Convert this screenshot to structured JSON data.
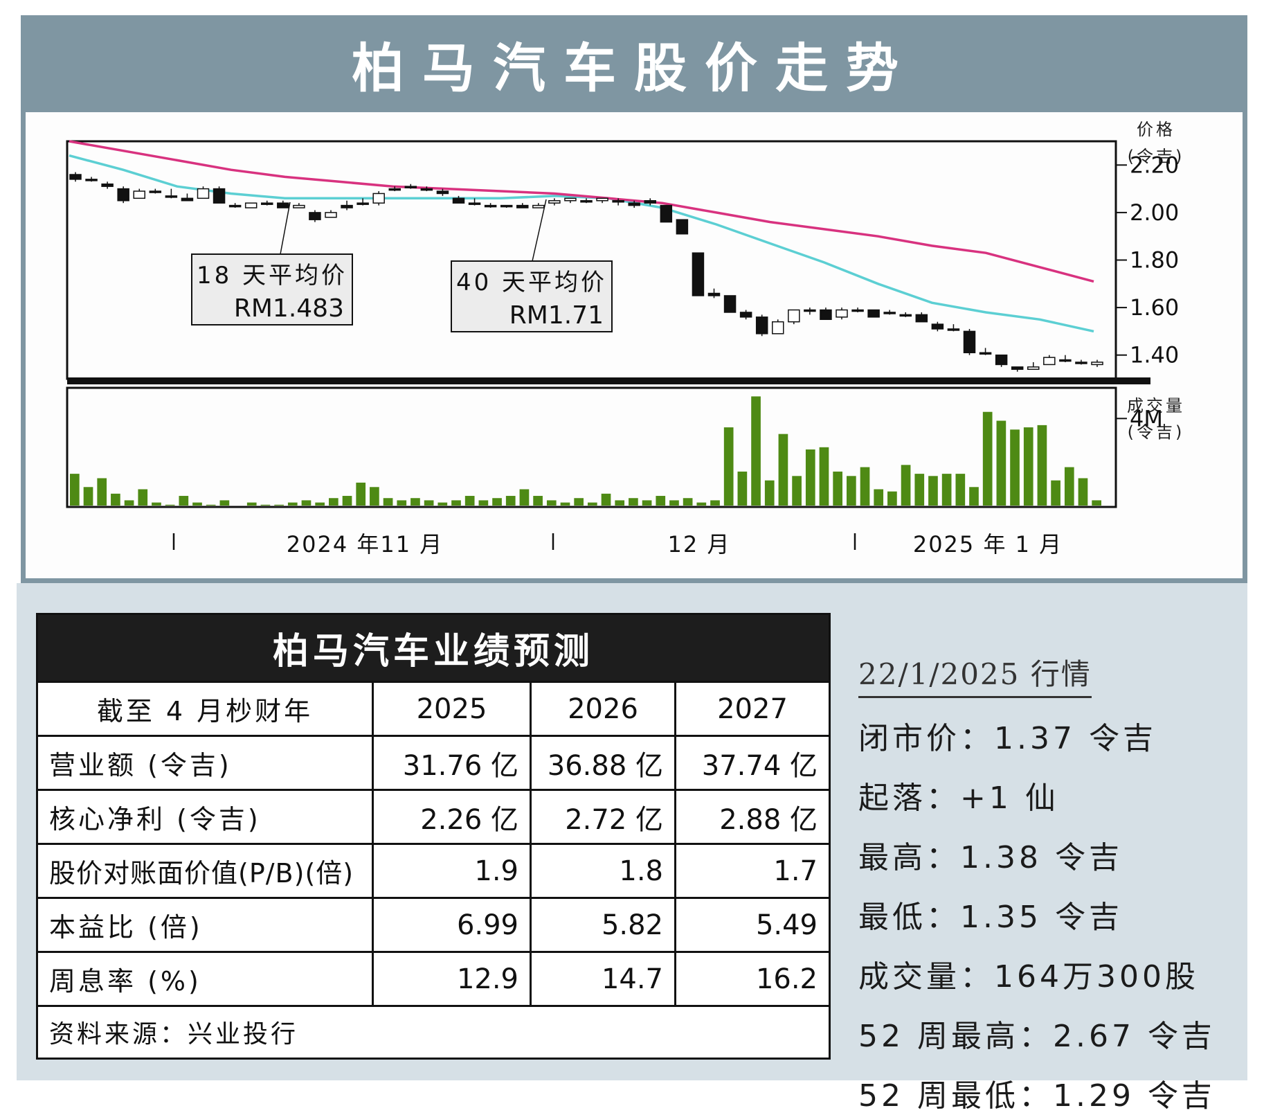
{
  "title": "柏马汽车股价走势",
  "chart_data": [
    {
      "type": "candlestick",
      "title": "柏马汽车股价走势",
      "ylabel": "价格 (令吉)",
      "y_ticks": [
        "2.20",
        "2.00",
        "1.80",
        "1.60",
        "1.40"
      ],
      "ylim": [
        1.3,
        2.3
      ],
      "x_labels": [
        "2024 年11 月",
        "12 月",
        "2025 年 1 月"
      ],
      "ma_labels": [
        {
          "name": "18 天平均价",
          "value": "RM1.483"
        },
        {
          "name": "40 天平均价",
          "value": "RM1.71"
        }
      ],
      "series": [
        {
          "name": "18 天平均价",
          "color": "#5ccfd3",
          "values": [
            2.24,
            2.18,
            2.11,
            2.08,
            2.06,
            2.06,
            2.06,
            2.06,
            2.06,
            2.07,
            2.06,
            2.02,
            1.95,
            1.87,
            1.79,
            1.7,
            1.62,
            1.58,
            1.55,
            1.5
          ]
        },
        {
          "name": "40 天平均价",
          "color": "#d8327f",
          "values": [
            2.3,
            2.26,
            2.22,
            2.18,
            2.15,
            2.13,
            2.11,
            2.1,
            2.09,
            2.08,
            2.06,
            2.04,
            2.0,
            1.96,
            1.93,
            1.9,
            1.86,
            1.83,
            1.77,
            1.71
          ]
        }
      ],
      "ohlc": [
        [
          2.16,
          2.17,
          2.13,
          2.14
        ],
        [
          2.14,
          2.15,
          2.13,
          2.14
        ],
        [
          2.12,
          2.13,
          2.1,
          2.11
        ],
        [
          2.1,
          2.11,
          2.04,
          2.05
        ],
        [
          2.06,
          2.1,
          2.06,
          2.09
        ],
        [
          2.09,
          2.1,
          2.08,
          2.09
        ],
        [
          2.07,
          2.1,
          2.06,
          2.07
        ],
        [
          2.06,
          2.08,
          2.05,
          2.05
        ],
        [
          2.06,
          2.11,
          2.06,
          2.1
        ],
        [
          2.1,
          2.11,
          2.04,
          2.04
        ],
        [
          2.03,
          2.04,
          2.02,
          2.03
        ],
        [
          2.02,
          2.04,
          2.02,
          2.04
        ],
        [
          2.04,
          2.05,
          2.03,
          2.04
        ],
        [
          2.04,
          2.05,
          2.02,
          2.02
        ],
        [
          2.02,
          2.04,
          2.02,
          2.03
        ],
        [
          2.0,
          2.01,
          1.96,
          1.97
        ],
        [
          1.98,
          2.01,
          1.98,
          2.0
        ],
        [
          2.03,
          2.05,
          2.01,
          2.02
        ],
        [
          2.04,
          2.06,
          2.03,
          2.04
        ],
        [
          2.04,
          2.09,
          2.03,
          2.08
        ],
        [
          2.1,
          2.11,
          2.09,
          2.1
        ],
        [
          2.11,
          2.12,
          2.1,
          2.11
        ],
        [
          2.1,
          2.11,
          2.09,
          2.1
        ],
        [
          2.09,
          2.1,
          2.07,
          2.08
        ],
        [
          2.06,
          2.07,
          2.04,
          2.04
        ],
        [
          2.04,
          2.06,
          2.03,
          2.04
        ],
        [
          2.03,
          2.04,
          2.02,
          2.03
        ],
        [
          2.03,
          2.03,
          2.02,
          2.03
        ],
        [
          2.03,
          2.04,
          2.02,
          2.02
        ],
        [
          2.02,
          2.04,
          2.02,
          2.03
        ],
        [
          2.04,
          2.06,
          2.03,
          2.05
        ],
        [
          2.05,
          2.06,
          2.04,
          2.06
        ],
        [
          2.05,
          2.06,
          2.04,
          2.05
        ],
        [
          2.05,
          2.06,
          2.04,
          2.06
        ],
        [
          2.05,
          2.06,
          2.03,
          2.05
        ],
        [
          2.04,
          2.05,
          2.02,
          2.03
        ],
        [
          2.05,
          2.06,
          2.03,
          2.04
        ],
        [
          2.03,
          2.03,
          1.96,
          1.96
        ],
        [
          1.97,
          1.97,
          1.91,
          1.91
        ],
        [
          1.83,
          1.83,
          1.65,
          1.65
        ],
        [
          1.66,
          1.68,
          1.64,
          1.65
        ],
        [
          1.65,
          1.65,
          1.58,
          1.58
        ],
        [
          1.58,
          1.59,
          1.55,
          1.56
        ],
        [
          1.56,
          1.57,
          1.48,
          1.49
        ],
        [
          1.49,
          1.55,
          1.49,
          1.54
        ],
        [
          1.54,
          1.59,
          1.53,
          1.59
        ],
        [
          1.59,
          1.6,
          1.57,
          1.59
        ],
        [
          1.59,
          1.6,
          1.55,
          1.55
        ],
        [
          1.56,
          1.6,
          1.55,
          1.59
        ],
        [
          1.59,
          1.6,
          1.58,
          1.59
        ],
        [
          1.59,
          1.59,
          1.56,
          1.56
        ],
        [
          1.58,
          1.59,
          1.57,
          1.58
        ],
        [
          1.57,
          1.58,
          1.56,
          1.57
        ],
        [
          1.57,
          1.58,
          1.54,
          1.54
        ],
        [
          1.53,
          1.54,
          1.5,
          1.51
        ],
        [
          1.51,
          1.53,
          1.5,
          1.51
        ],
        [
          1.5,
          1.51,
          1.4,
          1.41
        ],
        [
          1.41,
          1.43,
          1.4,
          1.41
        ],
        [
          1.4,
          1.4,
          1.35,
          1.36
        ],
        [
          1.35,
          1.35,
          1.33,
          1.34
        ],
        [
          1.34,
          1.37,
          1.34,
          1.35
        ],
        [
          1.36,
          1.4,
          1.36,
          1.39
        ],
        [
          1.38,
          1.4,
          1.37,
          1.38
        ],
        [
          1.37,
          1.38,
          1.36,
          1.37
        ],
        [
          1.36,
          1.38,
          1.35,
          1.37
        ]
      ],
      "volume_label": "成交量 (令吉)",
      "volume_tick": "4M",
      "volume_millions": [
        1.5,
        0.9,
        1.3,
        0.6,
        0.3,
        0.8,
        0.2,
        0.1,
        0.5,
        0.2,
        0.1,
        0.3,
        0.05,
        0.2,
        0.1,
        0.1,
        0.2,
        0.3,
        0.2,
        0.4,
        0.5,
        1.1,
        0.9,
        0.4,
        0.3,
        0.4,
        0.3,
        0.2,
        0.3,
        0.5,
        0.3,
        0.4,
        0.5,
        0.8,
        0.5,
        0.3,
        0.2,
        0.4,
        0.2,
        0.6,
        0.3,
        0.4,
        0.3,
        0.5,
        0.3,
        0.4,
        0.2,
        0.3,
        3.6,
        1.6,
        5.0,
        1.2,
        3.3,
        1.4,
        2.6,
        2.7,
        1.6,
        1.4,
        1.8,
        0.8,
        0.7,
        1.9,
        1.5,
        1.4,
        1.5,
        1.5,
        0.9,
        4.3,
        3.9,
        3.5,
        3.6,
        3.7,
        1.2,
        1.8,
        1.3,
        0.3
      ]
    }
  ],
  "forecast": {
    "title": "柏马汽车业绩预测",
    "header": [
      "截至 4 月杪财年",
      "2025",
      "2026",
      "2027"
    ],
    "rows": [
      [
        "营业额 (令吉)",
        "31.76 亿",
        "36.88 亿",
        "37.74 亿"
      ],
      [
        "核心净利 (令吉)",
        "2.26 亿",
        "2.72 亿",
        "2.88 亿"
      ],
      [
        "股价对账面价值(P/B)(倍)",
        "1.9",
        "1.8",
        "1.7"
      ],
      [
        "本益比 (倍)",
        "6.99",
        "5.82",
        "5.49"
      ],
      [
        "周息率 (%)",
        "12.9",
        "14.7",
        "16.2"
      ]
    ],
    "source": "资料来源：兴业投行"
  },
  "quote": {
    "date": "22/1/2025 行情",
    "lines": [
      "闭市价：1.37 令吉",
      "起落：+1 仙",
      "最高：1.38 令吉",
      "最低：1.35 令吉",
      "成交量：164万300股",
      "52 周最高：2.67 令吉",
      "52 周最低：1.29 令吉"
    ]
  }
}
